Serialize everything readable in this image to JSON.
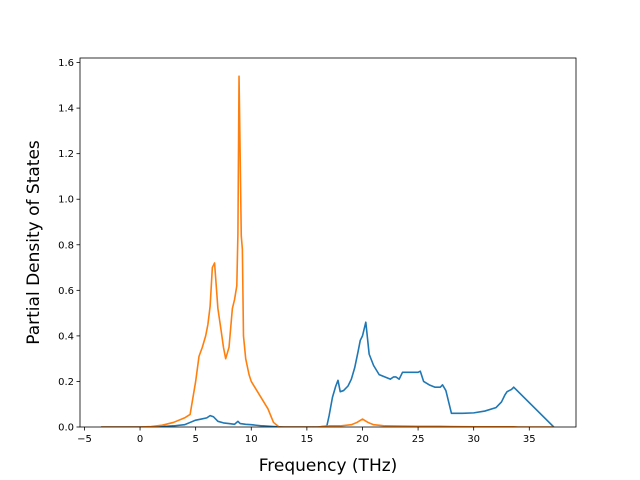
{
  "chart_data": {
    "type": "line",
    "title": "",
    "xlabel": "Frequency (THz)",
    "ylabel": "Partial Density of States",
    "xlim": [
      -5.4,
      39.2
    ],
    "ylim": [
      0.0,
      1.62
    ],
    "xticks": [
      -5,
      0,
      5,
      10,
      15,
      20,
      25,
      30,
      35
    ],
    "xtick_labels": [
      "−5",
      "0",
      "5",
      "10",
      "15",
      "20",
      "25",
      "30",
      "35"
    ],
    "yticks": [
      0.0,
      0.2,
      0.4,
      0.6,
      0.8,
      1.0,
      1.2,
      1.4,
      1.6
    ],
    "ytick_labels": [
      "0.0",
      "0.2",
      "0.4",
      "0.6",
      "0.8",
      "1.0",
      "1.2",
      "1.4",
      "1.6"
    ],
    "grid": false,
    "legend": "none",
    "series": [
      {
        "color": "#1f77b4",
        "x": [
          -3.5,
          0,
          2,
          3,
          4,
          4.5,
          5,
          5.5,
          6,
          6.3,
          6.6,
          7,
          7.5,
          8,
          8.5,
          8.8,
          9,
          9.5,
          10,
          11,
          12,
          13,
          14,
          15,
          16,
          16.8,
          17,
          17.3,
          17.6,
          17.8,
          18,
          18.3,
          18.7,
          19,
          19.3,
          19.6,
          19.8,
          20,
          20.3,
          20.6,
          21,
          21.5,
          22,
          22.5,
          22.8,
          23,
          23.3,
          23.6,
          24,
          24.5,
          25,
          25.2,
          25.5,
          26,
          26.5,
          27,
          27.2,
          27.5,
          28,
          29,
          30,
          31,
          32,
          32.5,
          32.8,
          33,
          33.2,
          33.4,
          33.6,
          37.2
        ],
        "y": [
          0.0,
          0.0,
          0.002,
          0.005,
          0.01,
          0.02,
          0.03,
          0.035,
          0.04,
          0.05,
          0.045,
          0.025,
          0.018,
          0.015,
          0.012,
          0.025,
          0.015,
          0.012,
          0.01,
          0.005,
          0.002,
          0.0,
          0.0,
          0.0,
          0.0,
          0.005,
          0.05,
          0.13,
          0.18,
          0.205,
          0.155,
          0.16,
          0.18,
          0.21,
          0.26,
          0.33,
          0.38,
          0.4,
          0.46,
          0.32,
          0.27,
          0.23,
          0.22,
          0.21,
          0.22,
          0.22,
          0.21,
          0.24,
          0.24,
          0.24,
          0.24,
          0.245,
          0.2,
          0.185,
          0.175,
          0.175,
          0.185,
          0.16,
          0.06,
          0.06,
          0.062,
          0.07,
          0.085,
          0.11,
          0.14,
          0.155,
          0.16,
          0.165,
          0.175,
          0.0
        ]
      },
      {
        "color": "#ff7f0e",
        "x": [
          -3.5,
          0,
          1,
          2,
          3,
          4,
          4.5,
          5,
          5.3,
          5.6,
          5.9,
          6.1,
          6.3,
          6.5,
          6.7,
          7,
          7.3,
          7.5,
          7.7,
          8,
          8.3,
          8.5,
          8.7,
          8.8,
          8.9,
          9,
          9.1,
          9.2,
          9.3,
          9.5,
          9.8,
          10,
          10.5,
          11,
          11.5,
          12,
          12.5,
          13,
          14,
          15,
          16,
          17,
          18,
          19,
          19.5,
          20,
          20.5,
          21,
          22,
          25,
          27,
          28,
          30,
          32,
          33,
          33.6,
          34,
          37.2
        ],
        "y": [
          0.0,
          0.0,
          0.002,
          0.008,
          0.02,
          0.04,
          0.055,
          0.2,
          0.31,
          0.35,
          0.4,
          0.45,
          0.53,
          0.7,
          0.72,
          0.52,
          0.42,
          0.35,
          0.3,
          0.35,
          0.52,
          0.56,
          0.62,
          0.85,
          1.54,
          1.2,
          0.84,
          0.78,
          0.4,
          0.3,
          0.23,
          0.2,
          0.16,
          0.12,
          0.08,
          0.02,
          0.0,
          0.0,
          0.0,
          0.0,
          0.0,
          0.005,
          0.005,
          0.01,
          0.02,
          0.035,
          0.02,
          0.01,
          0.005,
          0.003,
          0.003,
          0.002,
          0.001,
          0.001,
          0.001,
          0.001,
          0.0,
          0.0
        ]
      }
    ]
  }
}
